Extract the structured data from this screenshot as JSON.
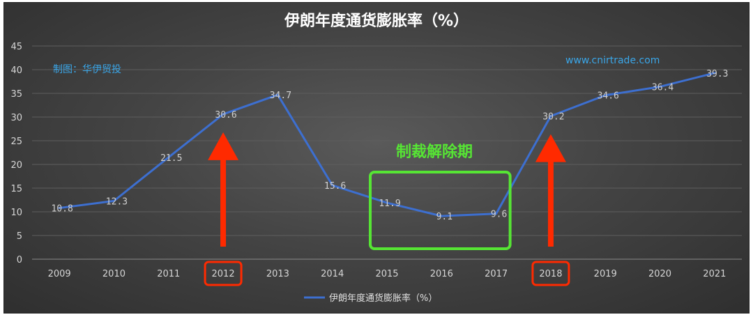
{
  "chart_data": {
    "type": "line",
    "title": "伊朗年度通货膨胀率（%）",
    "categories": [
      "2009",
      "2010",
      "2011",
      "2012",
      "2013",
      "2014",
      "2015",
      "2016",
      "2017",
      "2018",
      "2019",
      "2020",
      "2021"
    ],
    "series": [
      {
        "name": "伊朗年度通货膨胀率（%）",
        "values": [
          10.8,
          12.3,
          21.5,
          30.6,
          34.7,
          15.6,
          11.9,
          9.1,
          9.6,
          30.2,
          34.6,
          36.4,
          39.3
        ],
        "labels": [
          "10.8",
          "12.3",
          "21.5",
          "30.6",
          "34.7",
          "15.6",
          "11.9",
          "9.1",
          "9.6",
          "30.2",
          "34.6",
          "36.4",
          "39.3"
        ],
        "color": "#3d6fd0"
      }
    ],
    "y_ticks": [
      "0",
      "5",
      "10",
      "15",
      "20",
      "25",
      "30",
      "35",
      "40",
      "45"
    ],
    "ylim": [
      0,
      45
    ],
    "grid": true,
    "legend_position": "bottom",
    "annotations": {
      "source_note": "制图：华伊贸投",
      "website": "www.cnirtrade.com",
      "sanction_period_label": "制裁解除期",
      "sanction_period_range": [
        "2015",
        "2017"
      ],
      "highlighted_years": [
        "2012",
        "2018"
      ]
    },
    "colors": {
      "background": "#444444",
      "line": "#3d6fd0",
      "arrow": "#ff2a00",
      "highlight_box": "#ff2a00",
      "sanction_box": "#56e534",
      "note": "#3aa6e8"
    }
  }
}
